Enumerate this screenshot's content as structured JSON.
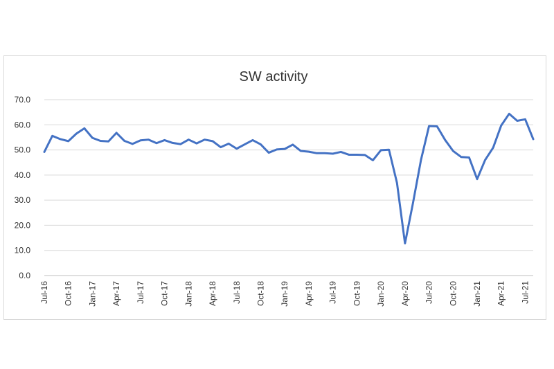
{
  "chart_data": {
    "type": "line",
    "title": "SW activity",
    "xlabel": "",
    "ylabel": "",
    "ylim": [
      0,
      70
    ],
    "yticks": [
      "0.0",
      "10.0",
      "20.0",
      "30.0",
      "40.0",
      "50.0",
      "60.0",
      "70.0"
    ],
    "grid": "horizontal",
    "legend": "none",
    "line_color": "#4472C4",
    "x_tick_labels": [
      "Jul-16",
      "Oct-16",
      "Jan-17",
      "Apr-17",
      "Jul-17",
      "Oct-17",
      "Jan-18",
      "Apr-18",
      "Jul-18",
      "Oct-18",
      "Jan-19",
      "Apr-19",
      "Jul-19",
      "Oct-19",
      "Jan-20",
      "Apr-20",
      "Jul-20",
      "Oct-20",
      "Jan-21",
      "Apr-21",
      "Jul-21"
    ],
    "x": [
      "Jul-16",
      "Aug-16",
      "Sep-16",
      "Oct-16",
      "Nov-16",
      "Dec-16",
      "Jan-17",
      "Feb-17",
      "Mar-17",
      "Apr-17",
      "May-17",
      "Jun-17",
      "Jul-17",
      "Aug-17",
      "Sep-17",
      "Oct-17",
      "Nov-17",
      "Dec-17",
      "Jan-18",
      "Feb-18",
      "Mar-18",
      "Apr-18",
      "May-18",
      "Jun-18",
      "Jul-18",
      "Aug-18",
      "Sep-18",
      "Oct-18",
      "Nov-18",
      "Dec-18",
      "Jan-19",
      "Feb-19",
      "Mar-19",
      "Apr-19",
      "May-19",
      "Jun-19",
      "Jul-19",
      "Aug-19",
      "Sep-19",
      "Oct-19",
      "Nov-19",
      "Dec-19",
      "Jan-20",
      "Feb-20",
      "Mar-20",
      "Apr-20",
      "May-20",
      "Jun-20",
      "Jul-20",
      "Aug-20",
      "Sep-20",
      "Oct-20",
      "Nov-20",
      "Dec-20",
      "Jan-21",
      "Feb-21",
      "Mar-21",
      "Apr-21",
      "May-21",
      "Jun-21",
      "Jul-21",
      "Aug-21"
    ],
    "series": [
      {
        "values": [
          49.2,
          55.6,
          54.3,
          53.5,
          56.5,
          58.6,
          54.8,
          53.6,
          53.4,
          56.8,
          53.6,
          52.4,
          53.8,
          54.1,
          52.7,
          53.9,
          52.8,
          52.3,
          54.1,
          52.6,
          54.1,
          53.5,
          51.1,
          52.5,
          50.5,
          52.2,
          53.9,
          52.2,
          48.9,
          50.2,
          50.4,
          52.1,
          49.6,
          49.3,
          48.7,
          48.7,
          48.5,
          49.2,
          48.1,
          48.1,
          48.0,
          45.9,
          49.9,
          50.1,
          36.9,
          12.8,
          28.9,
          46.1,
          59.5,
          59.4,
          54.0,
          49.6,
          47.2,
          47.0,
          38.4,
          46.0,
          50.9,
          59.7,
          64.4,
          61.6,
          62.2,
          54.3
        ]
      }
    ]
  }
}
